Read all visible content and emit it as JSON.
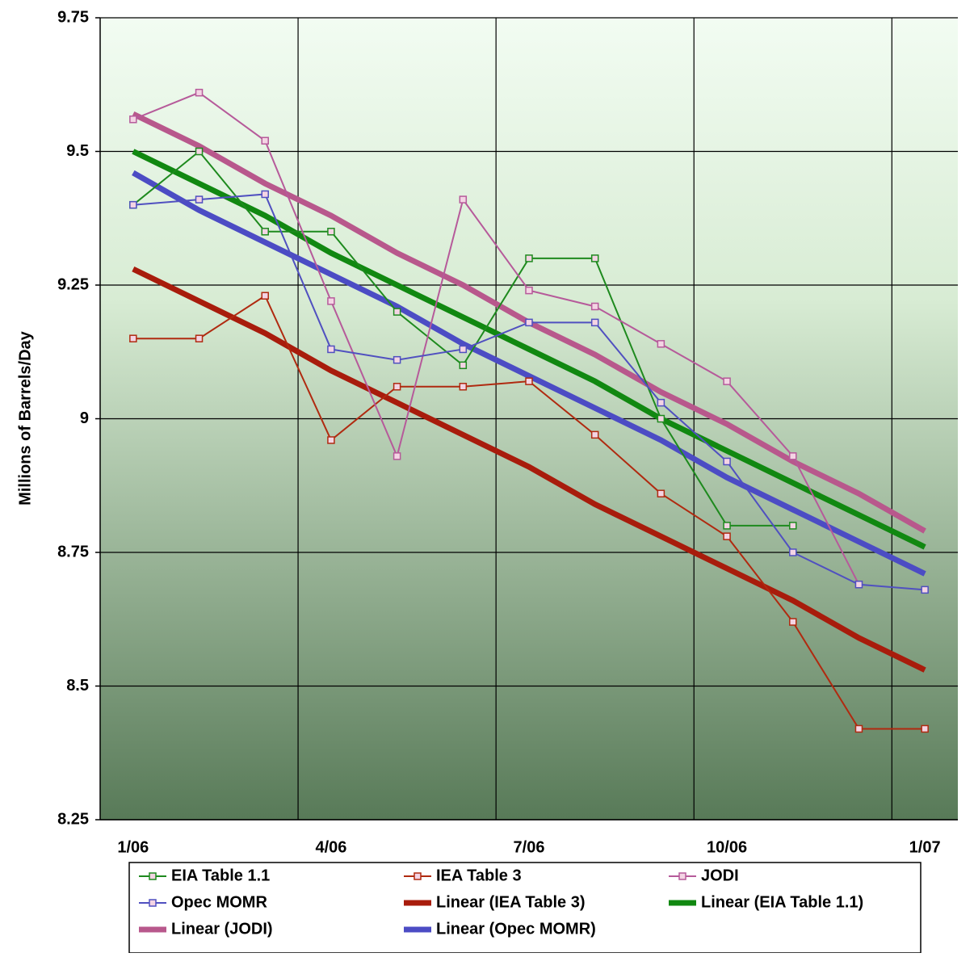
{
  "chart_data": {
    "type": "line",
    "y_label": "Millions of Barrels/Day",
    "categories": [
      "1/06",
      null,
      null,
      "4/06",
      null,
      null,
      "7/06",
      null,
      null,
      "10/06",
      null,
      null,
      "1/07"
    ],
    "ylim": [
      8.25,
      9.75
    ],
    "yticks": [
      8.25,
      8.5,
      8.75,
      9,
      9.25,
      9.5,
      9.75
    ],
    "grid": true,
    "series": [
      {
        "name": "EIA Table 1.1",
        "color": "#1e8a1e",
        "width": 2,
        "markers": true,
        "values": [
          9.4,
          9.5,
          9.35,
          9.35,
          9.2,
          9.1,
          9.3,
          9.3,
          9.0,
          8.8,
          8.8,
          null,
          null
        ]
      },
      {
        "name": "IEA Table 3",
        "color": "#b02a10",
        "width": 2,
        "markers": true,
        "values": [
          9.15,
          9.15,
          9.23,
          8.96,
          9.06,
          9.06,
          9.07,
          8.97,
          8.86,
          8.78,
          8.62,
          8.42,
          8.42
        ]
      },
      {
        "name": "JODI",
        "color": "#b65a9a",
        "width": 2,
        "markers": true,
        "values": [
          9.56,
          9.61,
          9.52,
          9.22,
          8.93,
          9.41,
          9.24,
          9.21,
          9.14,
          9.07,
          8.93,
          8.69,
          null
        ]
      },
      {
        "name": "Opec MOMR",
        "color": "#5050c0",
        "width": 2,
        "markers": true,
        "values": [
          9.4,
          9.41,
          9.42,
          9.13,
          9.11,
          9.13,
          9.18,
          9.18,
          9.03,
          8.92,
          8.75,
          8.69,
          8.68
        ]
      },
      {
        "name": "Linear (IEA Table 3)",
        "color": "#a81c0c",
        "width": 7,
        "markers": false,
        "values": [
          9.28,
          9.22,
          9.16,
          9.09,
          9.03,
          8.97,
          8.91,
          8.84,
          8.78,
          8.72,
          8.66,
          8.59,
          8.53
        ]
      },
      {
        "name": "Linear (EIA Table 1.1)",
        "color": "#118811",
        "width": 7,
        "markers": false,
        "values": [
          9.5,
          9.44,
          9.38,
          9.31,
          9.25,
          9.19,
          9.13,
          9.07,
          9.0,
          8.94,
          8.88,
          8.82,
          8.76
        ]
      },
      {
        "name": "Linear (JODI)",
        "color": "#b8588c",
        "width": 7,
        "markers": false,
        "values": [
          9.57,
          9.51,
          9.44,
          9.38,
          9.31,
          9.25,
          9.18,
          9.12,
          9.05,
          8.99,
          8.92,
          8.86,
          8.79
        ]
      },
      {
        "name": "Linear (Opec MOMR)",
        "color": "#4c4cc4",
        "width": 7,
        "markers": false,
        "values": [
          9.46,
          9.39,
          9.33,
          9.27,
          9.21,
          9.14,
          9.08,
          9.02,
          8.96,
          8.89,
          8.83,
          8.77,
          8.71
        ]
      }
    ]
  }
}
